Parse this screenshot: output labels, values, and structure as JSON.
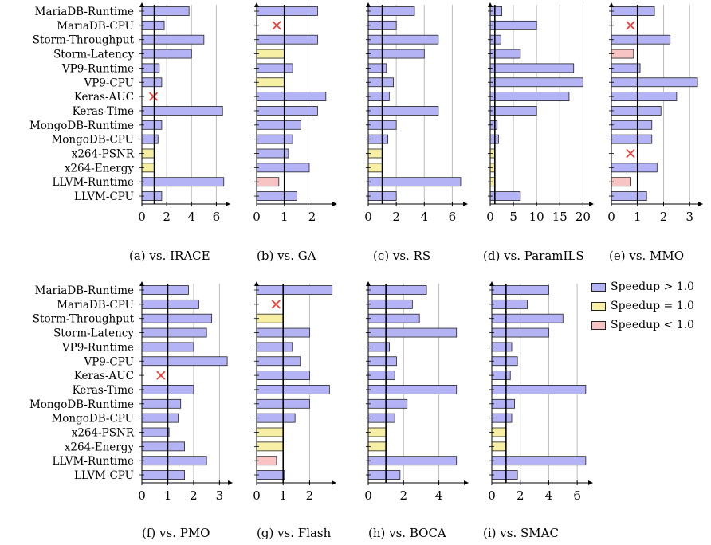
{
  "labels": [
    "MariaDB-Runtime",
    "MariaDB-CPU",
    "Storm-Throughput",
    "Storm-Latency",
    "VP9-Runtime",
    "VP9-CPU",
    "Keras-AUC",
    "Keras-Time",
    "MongoDB-Runtime",
    "MongoDB-CPU",
    "x264-PSNR",
    "x264-Energy",
    "LLVM-Runtime",
    "LLVM-CPU"
  ],
  "colors": {
    "greater": "#b3b3f5",
    "equal": "#f7f0a4",
    "less": "#f7c3c3",
    "cross": "#ef3e36",
    "grid": "#bdbdbd"
  },
  "legend": [
    {
      "label": "Speedup > 1.0",
      "color": "#b3b3f5"
    },
    {
      "label": "Speedup = 1.0",
      "color": "#f7f0a4"
    },
    {
      "label": "Speedup < 1.0",
      "color": "#f7c3c3"
    }
  ],
  "chart_data": [
    {
      "type": "bar",
      "caption": "(a) vs. IRACE",
      "values": [
        3.8,
        1.8,
        5.0,
        4.0,
        1.4,
        1.6,
        null,
        6.5,
        1.6,
        1.3,
        1.0,
        1.0,
        6.6,
        1.6
      ],
      "ticks": [
        0,
        2,
        4,
        6
      ],
      "xlim": [
        0,
        7
      ]
    },
    {
      "type": "bar",
      "caption": "(b) vs. GA",
      "values": [
        2.2,
        null,
        2.2,
        1.0,
        1.3,
        1.0,
        2.5,
        2.2,
        1.6,
        1.3,
        1.15,
        1.9,
        0.8,
        1.45
      ],
      "ticks": [
        0,
        1,
        2
      ],
      "xlim": [
        0,
        2.85
      ]
    },
    {
      "type": "bar",
      "caption": "(c) vs. RS",
      "values": [
        3.3,
        2.0,
        5.0,
        4.0,
        1.3,
        1.8,
        1.5,
        5.0,
        2.0,
        1.4,
        1.0,
        1.0,
        6.6,
        2.0
      ],
      "ticks": [
        0,
        2,
        4,
        6
      ],
      "xlim": [
        0,
        7
      ]
    },
    {
      "type": "bar",
      "caption": "(d) vs. ParamILS",
      "values": [
        2.5,
        10.0,
        2.3,
        6.5,
        18.0,
        20.0,
        17.0,
        10.0,
        1.5,
        1.8,
        1.0,
        1.0,
        1.0,
        6.5
      ],
      "ticks": [
        0,
        5,
        10,
        15,
        20
      ],
      "xlim": [
        0,
        22
      ]
    },
    {
      "type": "bar",
      "caption": "(e) vs. MMO",
      "values": [
        1.65,
        null,
        2.25,
        0.85,
        1.1,
        3.3,
        2.5,
        1.9,
        1.55,
        1.55,
        null,
        1.75,
        0.75,
        1.35
      ],
      "ticks": [
        0,
        1,
        2,
        3
      ],
      "xlim": [
        0,
        3.45
      ]
    },
    {
      "type": "bar",
      "caption": "(f) vs. PMO",
      "values": [
        1.8,
        2.2,
        2.7,
        2.5,
        2.0,
        3.3,
        null,
        2.0,
        1.5,
        1.4,
        1.05,
        1.65,
        2.5,
        1.65
      ],
      "ticks": [
        0,
        1,
        2,
        3
      ],
      "xlim": [
        0,
        3.45
      ]
    },
    {
      "type": "bar",
      "caption": "(g) vs. Flash",
      "values": [
        2.85,
        null,
        1.0,
        2.0,
        1.35,
        1.65,
        2.0,
        2.75,
        2.0,
        1.45,
        1.0,
        1.0,
        0.75,
        1.05
      ],
      "ticks": [
        0,
        1,
        2
      ],
      "xlim": [
        0,
        2.95
      ]
    },
    {
      "type": "bar",
      "caption": "(h) vs. BOCA",
      "values": [
        3.3,
        2.5,
        2.9,
        5.0,
        1.2,
        1.6,
        1.5,
        5.0,
        2.2,
        1.5,
        1.0,
        1.0,
        5.0,
        1.8
      ],
      "ticks": [
        0,
        2,
        4
      ],
      "xlim": [
        0,
        5.6
      ]
    },
    {
      "type": "bar",
      "caption": "(i) vs. SMAC",
      "values": [
        4.0,
        2.5,
        5.0,
        4.0,
        1.4,
        1.8,
        1.3,
        6.6,
        1.6,
        1.4,
        1.0,
        1.0,
        6.6,
        1.8
      ],
      "ticks": [
        0,
        2,
        4,
        6
      ],
      "xlim": [
        0,
        7
      ]
    }
  ]
}
